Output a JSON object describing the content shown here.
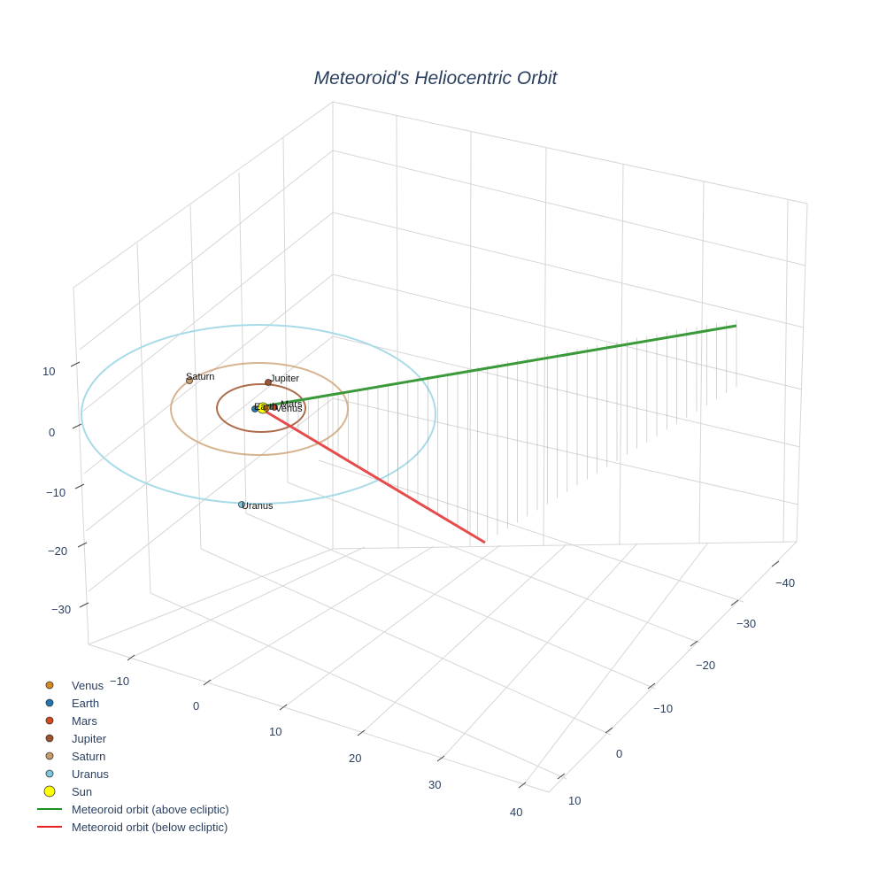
{
  "chart_data": {
    "type": "scatter3d",
    "title": "Meteoroid's Heliocentric Orbit",
    "xlabel": "",
    "ylabel": "",
    "zlabel": "",
    "x_ticks": [
      "−10",
      "0",
      "10",
      "20",
      "30",
      "40"
    ],
    "y_ticks": [
      "−40",
      "−30",
      "−20",
      "−10",
      "0",
      "10"
    ],
    "z_ticks": [
      "10",
      "0",
      "−10",
      "−20",
      "−30"
    ],
    "planets": [
      {
        "name": "Venus",
        "color": "#d68a1e",
        "label": "Venus"
      },
      {
        "name": "Earth",
        "color": "#1f77b4",
        "label": "Earth"
      },
      {
        "name": "Mars",
        "color": "#d9481c",
        "label": "Mars"
      },
      {
        "name": "Jupiter",
        "color": "#a0522d",
        "label": "Jupiter"
      },
      {
        "name": "Saturn",
        "color": "#c99b6b",
        "label": "Saturn"
      },
      {
        "name": "Uranus",
        "color": "#7ec8e3",
        "label": "Uranus"
      }
    ],
    "sun": {
      "name": "Sun",
      "color": "#ffff00"
    },
    "orbit_colors": {
      "jupiter": "#a0522d",
      "saturn": "#c99b6b",
      "uranus": "#a8dbe8"
    },
    "series": [
      {
        "name": "Meteoroid orbit (above ecliptic)",
        "color": "#3a9a3a"
      },
      {
        "name": "Meteoroid orbit (below ecliptic)",
        "color": "#e64c4c"
      }
    ],
    "legend": [
      "Venus",
      "Earth",
      "Mars",
      "Jupiter",
      "Saturn",
      "Uranus",
      "Sun",
      "Meteoroid orbit (above ecliptic)",
      "Meteoroid orbit (below ecliptic)"
    ]
  }
}
